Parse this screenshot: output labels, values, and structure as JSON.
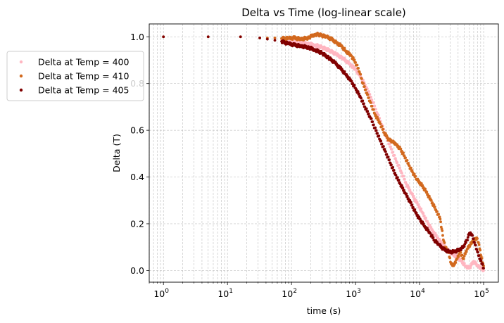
{
  "chart_data": {
    "type": "scatter",
    "title": "Delta vs Time (log-linear scale)",
    "xlabel": "time (s)",
    "ylabel": "Delta (T)",
    "xscale": "log",
    "xlim": [
      0.6,
      170000
    ],
    "ylim": [
      -0.05,
      1.055
    ],
    "grid": true,
    "legend_position": "upper-left, outside plot",
    "x_ticks": [
      {
        "value": 1,
        "base": "10",
        "exp": "0"
      },
      {
        "value": 10,
        "base": "10",
        "exp": "1"
      },
      {
        "value": 100,
        "base": "10",
        "exp": "2"
      },
      {
        "value": 1000,
        "base": "10",
        "exp": "3"
      },
      {
        "value": 10000,
        "base": "10",
        "exp": "4"
      },
      {
        "value": 100000,
        "base": "10",
        "exp": "5"
      }
    ],
    "y_ticks": [
      {
        "value": 0.0,
        "label": "0.0"
      },
      {
        "value": 0.2,
        "label": "0.2"
      },
      {
        "value": 0.4,
        "label": "0.4"
      },
      {
        "value": 0.6,
        "label": "0.6"
      },
      {
        "value": 0.8,
        "label": "0.8"
      },
      {
        "value": 1.0,
        "label": "1.0"
      }
    ],
    "series": [
      {
        "name": "Delta at Temp = 400",
        "color": "#ffb6c1",
        "points": [
          [
            1,
            1.0
          ],
          [
            5,
            1.0
          ],
          [
            16,
            1.0
          ],
          [
            32,
            0.995
          ],
          [
            42,
            0.995
          ],
          [
            55,
            0.993
          ],
          [
            70,
            0.99
          ],
          [
            90,
            0.985
          ],
          [
            110,
            0.98
          ],
          [
            140,
            0.975
          ],
          [
            180,
            0.97
          ],
          [
            230,
            0.965
          ],
          [
            300,
            0.955
          ],
          [
            400,
            0.94
          ],
          [
            500,
            0.925
          ],
          [
            650,
            0.905
          ],
          [
            800,
            0.885
          ],
          [
            1000,
            0.86
          ],
          [
            1200,
            0.83
          ],
          [
            1500,
            0.78
          ],
          [
            1800,
            0.73
          ],
          [
            2200,
            0.67
          ],
          [
            2600,
            0.62
          ],
          [
            3000,
            0.575
          ],
          [
            3600,
            0.52
          ],
          [
            4300,
            0.47
          ],
          [
            5200,
            0.42
          ],
          [
            6200,
            0.37
          ],
          [
            7500,
            0.33
          ],
          [
            9000,
            0.29
          ],
          [
            11000,
            0.25
          ],
          [
            13000,
            0.21
          ],
          [
            16000,
            0.17
          ],
          [
            19000,
            0.14
          ],
          [
            23000,
            0.11
          ],
          [
            27000,
            0.09
          ],
          [
            32000,
            0.07
          ],
          [
            38000,
            0.06
          ],
          [
            45000,
            0.04
          ],
          [
            52000,
            0.02
          ],
          [
            60000,
            0.01
          ],
          [
            70000,
            0.04
          ],
          [
            80000,
            0.02
          ],
          [
            90000,
            0.01
          ],
          [
            100000,
            0.0
          ]
        ]
      },
      {
        "name": "Delta at Temp = 410",
        "color": "#d2691e",
        "points": [
          [
            1,
            1.0
          ],
          [
            5,
            1.0
          ],
          [
            16,
            1.0
          ],
          [
            32,
            0.995
          ],
          [
            42,
            0.995
          ],
          [
            55,
            0.995
          ],
          [
            70,
            0.993
          ],
          [
            90,
            0.993
          ],
          [
            110,
            0.995
          ],
          [
            140,
            0.99
          ],
          [
            180,
            0.995
          ],
          [
            230,
            1.01
          ],
          [
            260,
            1.01
          ],
          [
            300,
            1.005
          ],
          [
            350,
            1.0
          ],
          [
            420,
            0.99
          ],
          [
            500,
            0.975
          ],
          [
            600,
            0.96
          ],
          [
            700,
            0.94
          ],
          [
            850,
            0.92
          ],
          [
            1000,
            0.89
          ],
          [
            1150,
            0.85
          ],
          [
            1300,
            0.8
          ],
          [
            1500,
            0.76
          ],
          [
            1700,
            0.72
          ],
          [
            2000,
            0.67
          ],
          [
            2400,
            0.63
          ],
          [
            2800,
            0.59
          ],
          [
            3300,
            0.56
          ],
          [
            3800,
            0.55
          ],
          [
            4300,
            0.54
          ],
          [
            5000,
            0.52
          ],
          [
            5800,
            0.49
          ],
          [
            6800,
            0.45
          ],
          [
            7800,
            0.42
          ],
          [
            9000,
            0.39
          ],
          [
            10500,
            0.37
          ],
          [
            12500,
            0.34
          ],
          [
            15000,
            0.3
          ],
          [
            18000,
            0.26
          ],
          [
            21000,
            0.22
          ],
          [
            23000,
            0.15
          ],
          [
            25000,
            0.1
          ],
          [
            28000,
            0.08
          ],
          [
            31000,
            0.03
          ],
          [
            34000,
            0.02
          ],
          [
            38000,
            0.05
          ],
          [
            43000,
            0.08
          ],
          [
            48000,
            0.05
          ],
          [
            55000,
            0.09
          ],
          [
            62000,
            0.11
          ],
          [
            70000,
            0.13
          ],
          [
            78000,
            0.14
          ],
          [
            85000,
            0.11
          ],
          [
            92000,
            0.06
          ],
          [
            100000,
            0.02
          ]
        ]
      },
      {
        "name": "Delta at Temp = 405",
        "color": "#800000",
        "points": [
          [
            1,
            1.0
          ],
          [
            5,
            1.0
          ],
          [
            16,
            1.0
          ],
          [
            32,
            0.995
          ],
          [
            42,
            0.99
          ],
          [
            55,
            0.985
          ],
          [
            70,
            0.98
          ],
          [
            90,
            0.97
          ],
          [
            110,
            0.965
          ],
          [
            140,
            0.96
          ],
          [
            180,
            0.955
          ],
          [
            230,
            0.945
          ],
          [
            300,
            0.93
          ],
          [
            380,
            0.91
          ],
          [
            470,
            0.89
          ],
          [
            580,
            0.865
          ],
          [
            700,
            0.84
          ],
          [
            850,
            0.81
          ],
          [
            1000,
            0.78
          ],
          [
            1200,
            0.74
          ],
          [
            1400,
            0.7
          ],
          [
            1700,
            0.655
          ],
          [
            2000,
            0.61
          ],
          [
            2400,
            0.56
          ],
          [
            2900,
            0.51
          ],
          [
            3500,
            0.46
          ],
          [
            4200,
            0.41
          ],
          [
            5000,
            0.37
          ],
          [
            6000,
            0.33
          ],
          [
            7200,
            0.29
          ],
          [
            8600,
            0.25
          ],
          [
            10000,
            0.22
          ],
          [
            12000,
            0.19
          ],
          [
            14500,
            0.16
          ],
          [
            17000,
            0.13
          ],
          [
            20000,
            0.11
          ],
          [
            24000,
            0.09
          ],
          [
            29000,
            0.08
          ],
          [
            35000,
            0.08
          ],
          [
            42000,
            0.09
          ],
          [
            48000,
            0.1
          ],
          [
            55000,
            0.13
          ],
          [
            60000,
            0.16
          ],
          [
            66000,
            0.15
          ],
          [
            72000,
            0.12
          ],
          [
            80000,
            0.08
          ],
          [
            88000,
            0.05
          ],
          [
            95000,
            0.03
          ],
          [
            100000,
            0.01
          ]
        ]
      }
    ]
  }
}
